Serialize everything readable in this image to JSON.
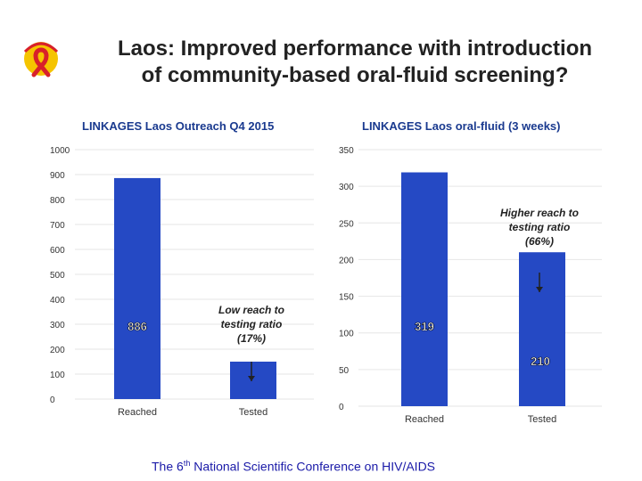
{
  "slide": {
    "title_line1": "Laos: Improved performance with introduction",
    "title_line2": "of community-based oral-fluid screening?",
    "footer_pre": "The 6",
    "footer_sup": "th",
    "footer_post": " National Scientific Conference on HIV/AIDS",
    "logo_icon": "red-ribbon-icon"
  },
  "colors": {
    "bar": "#2549c4",
    "title": "#1a3a8f",
    "grid": "#e6e6e6",
    "axis_text": "#333333",
    "logo_ring": "#f5c400",
    "ribbon": "#d8202a"
  },
  "chart_data": [
    {
      "type": "bar",
      "title": "LINKAGES Laos Outreach Q4 2015",
      "categories": [
        "Reached",
        "Tested"
      ],
      "values": [
        886,
        150
      ],
      "data_labels": [
        "886",
        ""
      ],
      "ylim": [
        0,
        1000
      ],
      "yticks": [
        0,
        100,
        200,
        300,
        400,
        500,
        600,
        700,
        800,
        900,
        1000
      ],
      "xlabel": "",
      "ylabel": "",
      "annotation": {
        "text": [
          "Low reach to",
          "testing ratio",
          "(17%)"
        ]
      }
    },
    {
      "type": "bar",
      "title": "LINKAGES Laos oral-fluid (3 weeks)",
      "categories": [
        "Reached",
        "Tested"
      ],
      "values": [
        319,
        210
      ],
      "data_labels": [
        "319",
        "210"
      ],
      "ylim": [
        0,
        350
      ],
      "yticks": [
        0,
        50,
        100,
        150,
        200,
        250,
        300,
        350
      ],
      "xlabel": "",
      "ylabel": "",
      "annotation": {
        "text": [
          "Higher reach to",
          "testing ratio",
          "(66%)"
        ]
      }
    }
  ]
}
